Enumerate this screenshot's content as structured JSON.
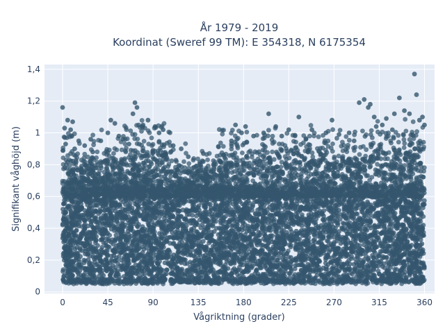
{
  "chart_data": {
    "type": "scatter",
    "title": "År 1979 - 2019",
    "subtitle": "Koordinat (Sweref 99 TM): E 354318, N 6175354",
    "xlabel": "Vågriktning (grader)",
    "ylabel": "Signifikant våghöjd (m)",
    "xlim": [
      -18,
      370
    ],
    "ylim": [
      -0.01,
      1.43
    ],
    "x_ticks": [
      0,
      45,
      90,
      135,
      180,
      225,
      270,
      315,
      360
    ],
    "x_tick_labels": [
      "0",
      "45",
      "90",
      "135",
      "180",
      "225",
      "270",
      "315",
      "360"
    ],
    "y_ticks": [
      0,
      0.2,
      0.4,
      0.6,
      0.8,
      1.0,
      1.2,
      1.4
    ],
    "y_tick_labels": [
      "0",
      "0,2",
      "0,4",
      "0,6",
      "0,8",
      "1",
      "1,2",
      "1,4"
    ],
    "grid": true,
    "marker_color": "#34566d",
    "plot_bg": "#e5ecf6",
    "dense_region": {
      "x_range": [
        0,
        360
      ],
      "y_range": [
        0.06,
        0.66
      ],
      "note_min_y": 0.05
    },
    "outliers": [
      [
        0,
        1.16
      ],
      [
        2,
        1.03
      ],
      [
        5,
        1.08
      ],
      [
        8,
        1.02
      ],
      [
        10,
        1.07
      ],
      [
        3,
        0.93
      ],
      [
        12,
        0.9
      ],
      [
        22,
        0.92
      ],
      [
        30,
        0.88
      ],
      [
        38,
        0.95
      ],
      [
        45,
        1.0
      ],
      [
        48,
        1.08
      ],
      [
        52,
        1.06
      ],
      [
        60,
        0.96
      ],
      [
        66,
        0.93
      ],
      [
        70,
        1.12
      ],
      [
        72,
        1.19
      ],
      [
        74,
        1.16
      ],
      [
        80,
        1.05
      ],
      [
        85,
        1.08
      ],
      [
        92,
        1.04
      ],
      [
        96,
        1.0
      ],
      [
        100,
        1.02
      ],
      [
        110,
        0.92
      ],
      [
        125,
        0.85
      ],
      [
        140,
        0.82
      ],
      [
        150,
        0.8
      ],
      [
        160,
        0.86
      ],
      [
        168,
        0.95
      ],
      [
        172,
        1.05
      ],
      [
        178,
        1.0
      ],
      [
        182,
        1.04
      ],
      [
        190,
        0.98
      ],
      [
        200,
        1.0
      ],
      [
        205,
        1.12
      ],
      [
        212,
        1.04
      ],
      [
        218,
        0.98
      ],
      [
        225,
        1.02
      ],
      [
        235,
        1.1
      ],
      [
        242,
        0.96
      ],
      [
        248,
        1.02
      ],
      [
        262,
        1.0
      ],
      [
        268,
        1.08
      ],
      [
        275,
        0.99
      ],
      [
        285,
        1.0
      ],
      [
        290,
        0.95
      ],
      [
        295,
        1.19
      ],
      [
        300,
        1.21
      ],
      [
        304,
        1.16
      ],
      [
        306,
        1.18
      ],
      [
        310,
        1.1
      ],
      [
        318,
        1.05
      ],
      [
        322,
        1.09
      ],
      [
        330,
        1.12
      ],
      [
        335,
        1.22
      ],
      [
        340,
        1.14
      ],
      [
        345,
        1.12
      ],
      [
        350,
        1.37
      ],
      [
        352,
        1.24
      ],
      [
        355,
        1.08
      ],
      [
        358,
        1.1
      ],
      [
        360,
        1.05
      ],
      [
        328,
        1.02
      ],
      [
        312,
        1.04
      ],
      [
        140,
        0.87
      ],
      [
        118,
        0.9
      ],
      [
        16,
        0.95
      ],
      [
        28,
        0.96
      ],
      [
        56,
        0.98
      ]
    ]
  }
}
